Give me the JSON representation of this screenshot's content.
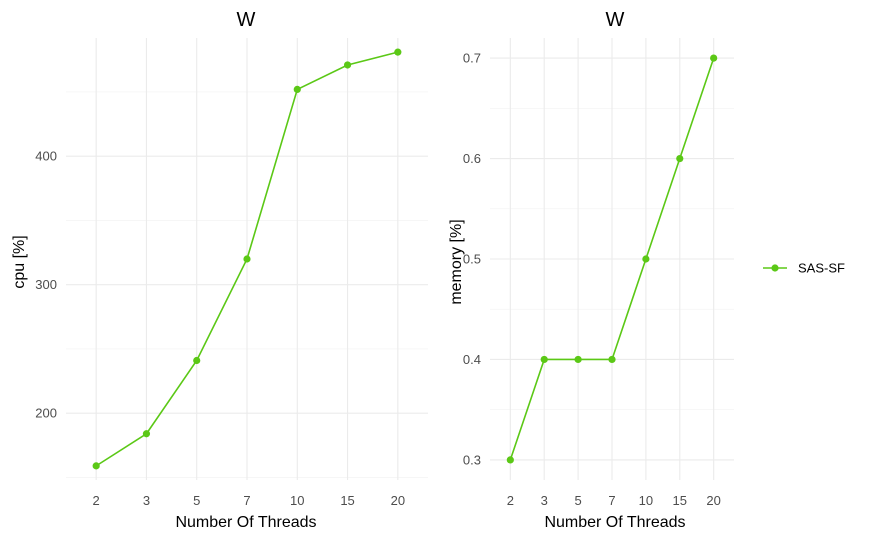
{
  "chart_data": [
    {
      "type": "line",
      "title": "W",
      "xlabel": "Number Of Threads",
      "ylabel": "cpu [%]",
      "categories": [
        "2",
        "3",
        "5",
        "7",
        "10",
        "15",
        "20"
      ],
      "yticks": [
        200,
        300,
        400
      ],
      "ylim": [
        148,
        492
      ],
      "grid": true,
      "series": [
        {
          "name": "SAS-SF",
          "color": "#5bc816",
          "values": [
            159,
            184,
            241,
            320,
            452,
            471,
            481
          ]
        }
      ]
    },
    {
      "type": "line",
      "title": "W",
      "xlabel": "Number Of Threads",
      "ylabel": "memory [%]",
      "categories": [
        "2",
        "3",
        "5",
        "7",
        "10",
        "15",
        "20"
      ],
      "yticks": [
        0.3,
        0.4,
        0.5,
        0.6,
        0.7
      ],
      "ylim": [
        0.28,
        0.72
      ],
      "grid": true,
      "series": [
        {
          "name": "SAS-SF",
          "color": "#5bc816",
          "values": [
            0.3,
            0.4,
            0.4,
            0.4,
            0.5,
            0.6,
            0.7
          ]
        }
      ]
    }
  ],
  "legend": {
    "placement": "right",
    "items": [
      {
        "label": "SAS-SF",
        "color": "#5bc816"
      }
    ]
  }
}
